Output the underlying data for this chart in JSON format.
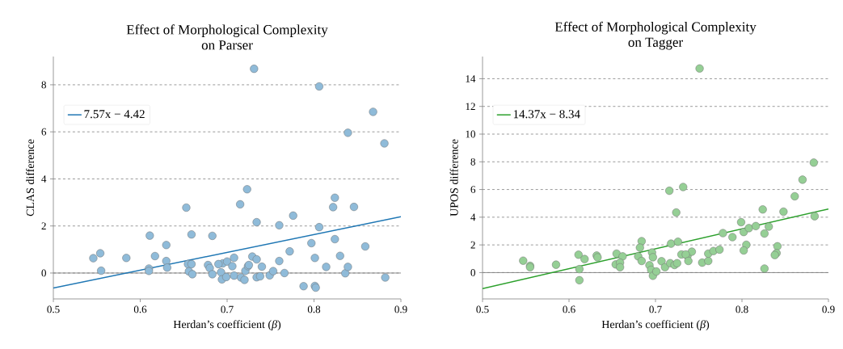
{
  "chart_data": [
    {
      "type": "scatter",
      "title": "Effect of Morphological Complexity on Parser",
      "xlabel": "Herdan’s coefficient (*β*)",
      "ylabel": "CLAS difference",
      "xlim": [
        0.5,
        0.9
      ],
      "ylim": [
        -1.1,
        9.2
      ],
      "xticks": [
        0.5,
        0.6,
        0.7,
        0.8,
        0.9
      ],
      "yticks": [
        0,
        2,
        4,
        6,
        8
      ],
      "grid": "y",
      "legend": "top left",
      "ref_lines": [
        {
          "axis": "y",
          "value": 0,
          "color": "#808080"
        }
      ],
      "series": [
        {
          "color": "#8fbbd9",
          "marker": "circle",
          "x": [
            0.731,
            0.806,
            0.868,
            0.839,
            0.881,
            0.723,
            0.824,
            0.822,
            0.846,
            0.653,
            0.715,
            0.776,
            0.734,
            0.76,
            0.806,
            0.611,
            0.659,
            0.683,
            0.797,
            0.824,
            0.859,
            0.63,
            0.772,
            0.546,
            0.554,
            0.584,
            0.617,
            0.801,
            0.83,
            0.63,
            0.76,
            0.555,
            0.61,
            0.61,
            0.631,
            0.655,
            0.659,
            0.656,
            0.66,
            0.678,
            0.68,
            0.683,
            0.693,
            0.694,
            0.695,
            0.69,
            0.7,
            0.699,
            0.706,
            0.708,
            0.708,
            0.716,
            0.72,
            0.721,
            0.724,
            0.725,
            0.729,
            0.734,
            0.74,
            0.734,
            0.738,
            0.749,
            0.753,
            0.766,
            0.788,
            0.801,
            0.802,
            0.814,
            0.836,
            0.839,
            0.882
          ],
          "values": [
            8.68,
            7.93,
            6.85,
            5.96,
            5.51,
            3.56,
            3.2,
            2.8,
            2.81,
            2.78,
            2.92,
            2.44,
            2.16,
            2.03,
            1.95,
            1.59,
            1.64,
            1.58,
            1.27,
            1.44,
            1.13,
            1.19,
            0.92,
            0.63,
            0.84,
            0.64,
            0.72,
            0.64,
            0.73,
            0.51,
            0.51,
            0.1,
            0.19,
            0.09,
            0.23,
            0.38,
            0.38,
            0.07,
            -0.05,
            0.34,
            0.21,
            -0.05,
            0.03,
            -0.27,
            0.41,
            0.38,
            0.49,
            -0.17,
            0.29,
            0.65,
            -0.11,
            -0.19,
            -0.29,
            0.09,
            0.29,
            0.34,
            0.7,
            0.58,
            0.27,
            -0.18,
            -0.14,
            -0.1,
            0.08,
            0.0,
            -0.56,
            -0.55,
            -0.62,
            0.26,
            -0.01,
            0.26,
            -0.19
          ]
        },
        {
          "type": "line",
          "name": "7.57x − 4.42",
          "marker": "none",
          "color": "#1f77b4",
          "x": [
            0.5,
            0.9
          ],
          "values": [
            -0.64,
            2.39
          ]
        }
      ]
    },
    {
      "type": "scatter",
      "title": "Effect of Morphological Complexity on Tagger",
      "xlabel": "Herdan’s coefficient (*β*)",
      "ylabel": "UPOS difference",
      "xlim": [
        0.5,
        0.9
      ],
      "ylim": [
        -1.9,
        15.6
      ],
      "xticks": [
        0.5,
        0.6,
        0.7,
        0.8,
        0.9
      ],
      "yticks": [
        0,
        2,
        4,
        6,
        8,
        10,
        12,
        14
      ],
      "grid": "y",
      "legend": "top left",
      "ref_lines": [
        {
          "axis": "y",
          "value": 0,
          "color": "#808080"
        }
      ],
      "series": [
        {
          "color": "#95cf95",
          "marker": "circle",
          "x": [
            0.751,
            0.883,
            0.87,
            0.861,
            0.716,
            0.732,
            0.724,
            0.824,
            0.848,
            0.884,
            0.799,
            0.802,
            0.808,
            0.816,
            0.831,
            0.826,
            0.778,
            0.789,
            0.805,
            0.802,
            0.841,
            0.84,
            0.838,
            0.826,
            0.684,
            0.682,
            0.68,
            0.684,
            0.718,
            0.726,
            0.73,
            0.737,
            0.742,
            0.735,
            0.738,
            0.696,
            0.697,
            0.693,
            0.695,
            0.697,
            0.701,
            0.707,
            0.711,
            0.717,
            0.722,
            0.725,
            0.754,
            0.761,
            0.761,
            0.767,
            0.774,
            0.655,
            0.662,
            0.654,
            0.659,
            0.659,
            0.632,
            0.633,
            0.611,
            0.618,
            0.612,
            0.612,
            0.547,
            0.555,
            0.555,
            0.585
          ],
          "values": [
            14.74,
            7.94,
            6.71,
            5.51,
            5.91,
            6.18,
            4.34,
            4.56,
            4.4,
            4.07,
            3.64,
            2.93,
            3.21,
            3.36,
            3.32,
            2.82,
            2.85,
            2.56,
            2.01,
            1.6,
            1.9,
            1.41,
            1.27,
            0.29,
            2.27,
            1.8,
            1.17,
            0.84,
            2.09,
            2.23,
            1.31,
            1.21,
            1.51,
            1.31,
            0.84,
            1.45,
            1.11,
            0.53,
            0.2,
            -0.23,
            0.08,
            0.82,
            0.39,
            0.68,
            0.55,
            0.68,
            0.72,
            0.84,
            1.37,
            1.56,
            1.66,
            1.37,
            1.17,
            0.59,
            0.72,
            0.39,
            1.23,
            1.1,
            1.29,
            0.98,
            0.25,
            -0.55,
            0.86,
            0.49,
            0.39,
            0.57
          ]
        },
        {
          "type": "line",
          "name": "14.37x − 8.34",
          "marker": "none",
          "color": "#2ca02c",
          "x": [
            0.5,
            0.9
          ],
          "values": [
            -1.16,
            4.59
          ]
        }
      ]
    }
  ]
}
